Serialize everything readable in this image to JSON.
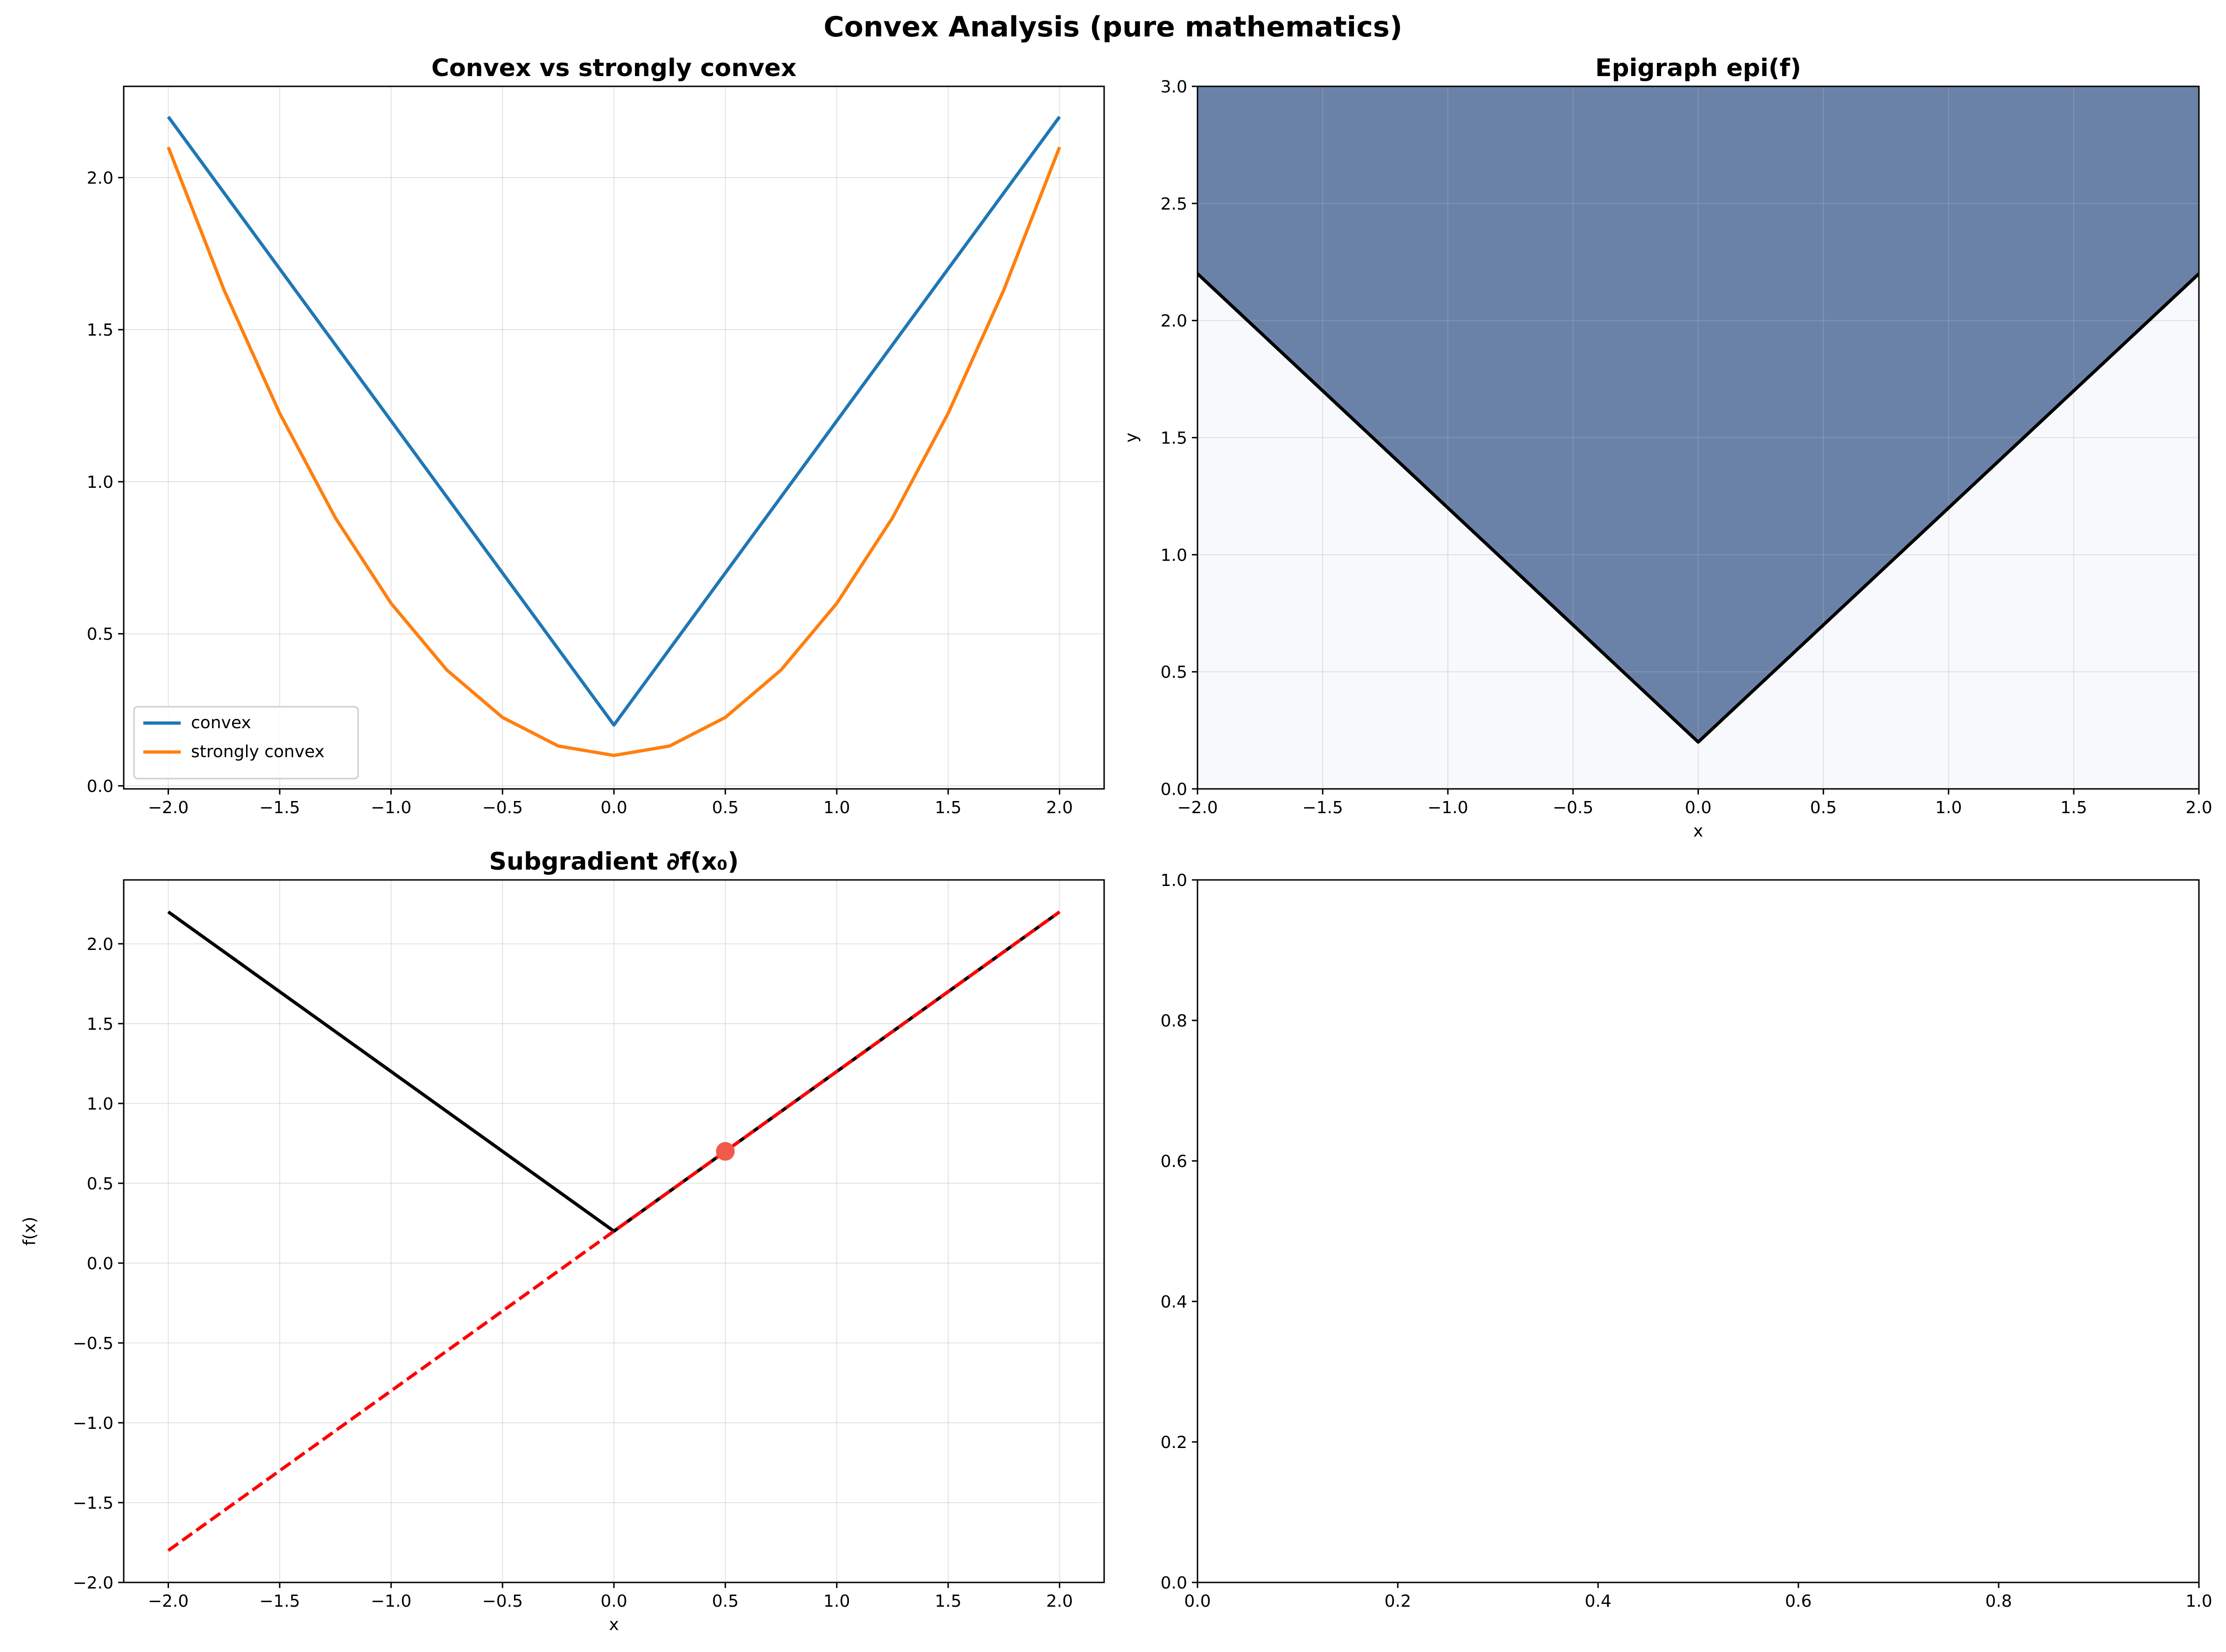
{
  "figure": {
    "title": "Convex Analysis (pure mathematics)"
  },
  "chart_data": [
    {
      "id": "p1",
      "type": "line",
      "title": "Convex vs strongly convex",
      "xlabel": "",
      "ylabel": "",
      "xlim": [
        -2.2,
        2.2
      ],
      "ylim": [
        -0.01,
        2.3
      ],
      "xticks": [
        -2.0,
        -1.5,
        -1.0,
        -0.5,
        0.0,
        0.5,
        1.0,
        1.5,
        2.0
      ],
      "yticks": [
        0.0,
        0.5,
        1.0,
        1.5,
        2.0
      ],
      "xtick_labels": [
        "−2.0",
        "−1.5",
        "−1.0",
        "−0.5",
        "0.0",
        "0.5",
        "1.0",
        "1.5",
        "2.0"
      ],
      "ytick_labels": [
        "0.0",
        "0.5",
        "1.0",
        "1.5",
        "2.0"
      ],
      "grid": true,
      "legend": "lower-left",
      "series": [
        {
          "name": "convex",
          "color": "#1f77b4",
          "style": "solid",
          "points": [
            [
              -2.0,
              2.2
            ],
            [
              0.0,
              0.2
            ],
            [
              2.0,
              2.2
            ]
          ]
        },
        {
          "name": "strongly convex",
          "color": "#ff7f0e",
          "style": "solid",
          "points": [
            [
              -2.0,
              2.1
            ],
            [
              -1.75,
              1.631
            ],
            [
              -1.5,
              1.225
            ],
            [
              -1.25,
              0.881
            ],
            [
              -1.0,
              0.6
            ],
            [
              -0.75,
              0.381
            ],
            [
              -0.5,
              0.225
            ],
            [
              -0.25,
              0.131
            ],
            [
              0.0,
              0.1
            ],
            [
              0.25,
              0.131
            ],
            [
              0.5,
              0.225
            ],
            [
              0.75,
              0.381
            ],
            [
              1.0,
              0.6
            ],
            [
              1.25,
              0.881
            ],
            [
              1.5,
              1.225
            ],
            [
              1.75,
              1.631
            ],
            [
              2.0,
              2.1
            ]
          ]
        }
      ]
    },
    {
      "id": "p2",
      "type": "area",
      "title": "Epigraph epi(f)",
      "xlabel": "x",
      "ylabel": "y",
      "xlim": [
        -2.0,
        2.0
      ],
      "ylim": [
        0.0,
        3.0
      ],
      "xticks": [
        -2.0,
        -1.5,
        -1.0,
        -0.5,
        0.0,
        0.5,
        1.0,
        1.5,
        2.0
      ],
      "yticks": [
        0.0,
        0.5,
        1.0,
        1.5,
        2.0,
        2.5,
        3.0
      ],
      "xtick_labels": [
        "−2.0",
        "−1.5",
        "−1.0",
        "−0.5",
        "0.0",
        "0.5",
        "1.0",
        "1.5",
        "2.0"
      ],
      "ytick_labels": [
        "0.0",
        "0.5",
        "1.0",
        "1.5",
        "2.0",
        "2.5",
        "3.0"
      ],
      "grid": true,
      "background_color": "#f7f9fd",
      "fill_color": "#6b82a8",
      "series": [
        {
          "name": "",
          "color": "#000000",
          "style": "solid",
          "points": [
            [
              -2.0,
              2.2
            ],
            [
              0.0,
              0.2
            ],
            [
              2.0,
              2.2
            ]
          ]
        }
      ]
    },
    {
      "id": "p3",
      "type": "line",
      "title": "Subgradient ∂f(x₀)",
      "xlabel": "x",
      "ylabel": "f(x)",
      "xlim": [
        -2.2,
        2.2
      ],
      "ylim": [
        -2.0,
        2.4
      ],
      "xticks": [
        -2.0,
        -1.5,
        -1.0,
        -0.5,
        0.0,
        0.5,
        1.0,
        1.5,
        2.0
      ],
      "yticks": [
        -2.0,
        -1.5,
        -1.0,
        -0.5,
        0.0,
        0.5,
        1.0,
        1.5,
        2.0
      ],
      "xtick_labels": [
        "−2.0",
        "−1.5",
        "−1.0",
        "−0.5",
        "0.0",
        "0.5",
        "1.0",
        "1.5",
        "2.0"
      ],
      "ytick_labels": [
        "−2.0",
        "−1.5",
        "−1.0",
        "−0.5",
        "0.0",
        "0.5",
        "1.0",
        "1.5",
        "2.0"
      ],
      "grid": true,
      "series": [
        {
          "name": "",
          "color": "#000000",
          "style": "solid",
          "points": [
            [
              -2.0,
              2.2
            ],
            [
              0.0,
              0.2
            ],
            [
              2.0,
              2.2
            ]
          ]
        },
        {
          "name": "",
          "color": "#ff0000",
          "style": "dashed",
          "points": [
            [
              -2.0,
              -1.8
            ],
            [
              2.0,
              2.2
            ]
          ]
        }
      ],
      "markers": [
        {
          "x": 0.5,
          "y": 0.7,
          "color": "#f05a4a"
        }
      ]
    },
    {
      "id": "p4",
      "type": "line",
      "title": "",
      "xlabel": "",
      "ylabel": "",
      "xlim": [
        0.0,
        1.0
      ],
      "ylim": [
        0.0,
        1.0
      ],
      "xticks": [
        0.0,
        0.2,
        0.4,
        0.6,
        0.8,
        1.0
      ],
      "yticks": [
        0.0,
        0.2,
        0.4,
        0.6,
        0.8,
        1.0
      ],
      "xtick_labels": [
        "0.0",
        "0.2",
        "0.4",
        "0.6",
        "0.8",
        "1.0"
      ],
      "ytick_labels": [
        "0.0",
        "0.2",
        "0.4",
        "0.6",
        "0.8",
        "1.0"
      ],
      "grid": false,
      "series": []
    }
  ]
}
